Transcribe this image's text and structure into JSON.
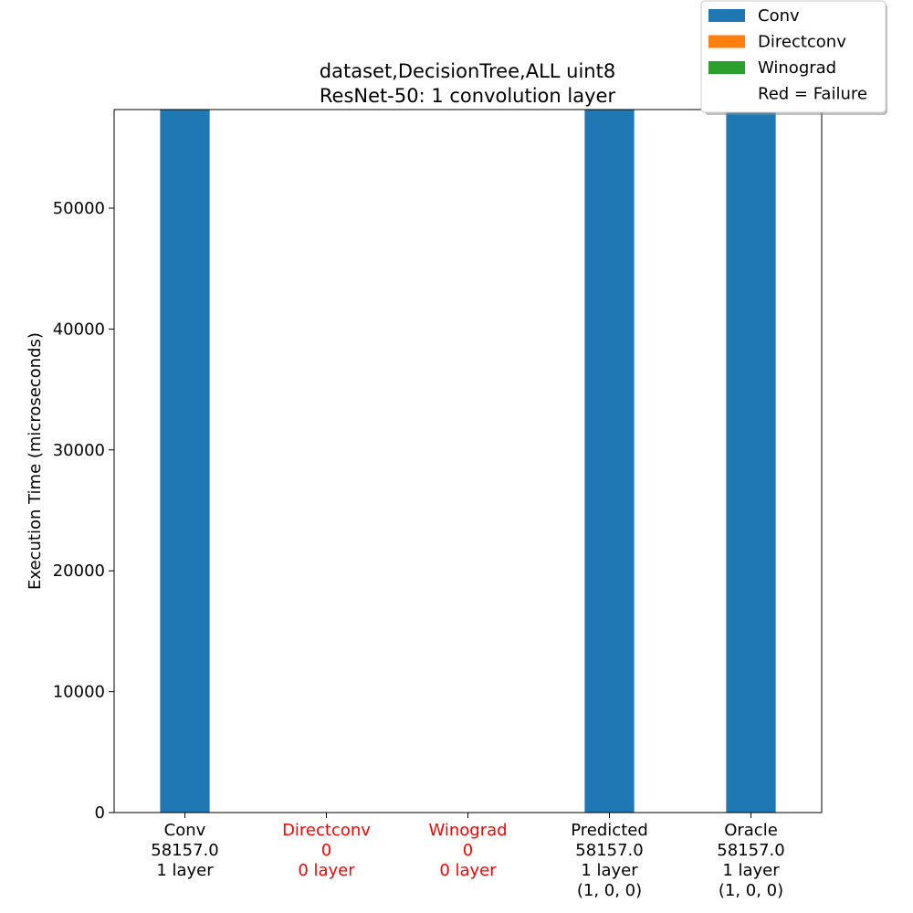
{
  "chart_data": {
    "type": "bar",
    "title_lines": [
      "dataset,DecisionTree,ALL uint8",
      "ResNet-50: 1 convolution layer"
    ],
    "ylabel": "Execution Time (microseconds)",
    "xlabel": "",
    "ylim": [
      0,
      58157
    ],
    "yticks": [
      "0",
      "10000",
      "20000",
      "30000",
      "40000",
      "50000"
    ],
    "grid": false,
    "categories": [
      {
        "lines": [
          "Conv",
          "58157.0",
          "1 layer"
        ],
        "failure": false
      },
      {
        "lines": [
          "Directconv",
          "0",
          "0 layer"
        ],
        "failure": true
      },
      {
        "lines": [
          "Winograd",
          "0",
          "0 layer"
        ],
        "failure": true
      },
      {
        "lines": [
          "Predicted",
          "58157.0",
          "1 layer",
          "(1, 0, 0)"
        ],
        "failure": false
      },
      {
        "lines": [
          "Oracle",
          "58157.0",
          "1 layer",
          "(1, 0, 0)"
        ],
        "failure": false
      }
    ],
    "series": [
      {
        "name": "Conv",
        "color": "#1f77b4",
        "values": [
          58157.0,
          0,
          0,
          58157.0,
          58157.0
        ]
      },
      {
        "name": "Directconv",
        "color": "#ff7f0e",
        "values": [
          0,
          0,
          0,
          0,
          0
        ]
      },
      {
        "name": "Winograd",
        "color": "#2ca02c",
        "values": [
          0,
          0,
          0,
          0,
          0
        ]
      }
    ],
    "legend": {
      "placement": "top-right",
      "entries": [
        "Conv",
        "Directconv",
        "Winograd",
        "Red = Failure"
      ]
    },
    "failure_color": "#ff0000"
  }
}
